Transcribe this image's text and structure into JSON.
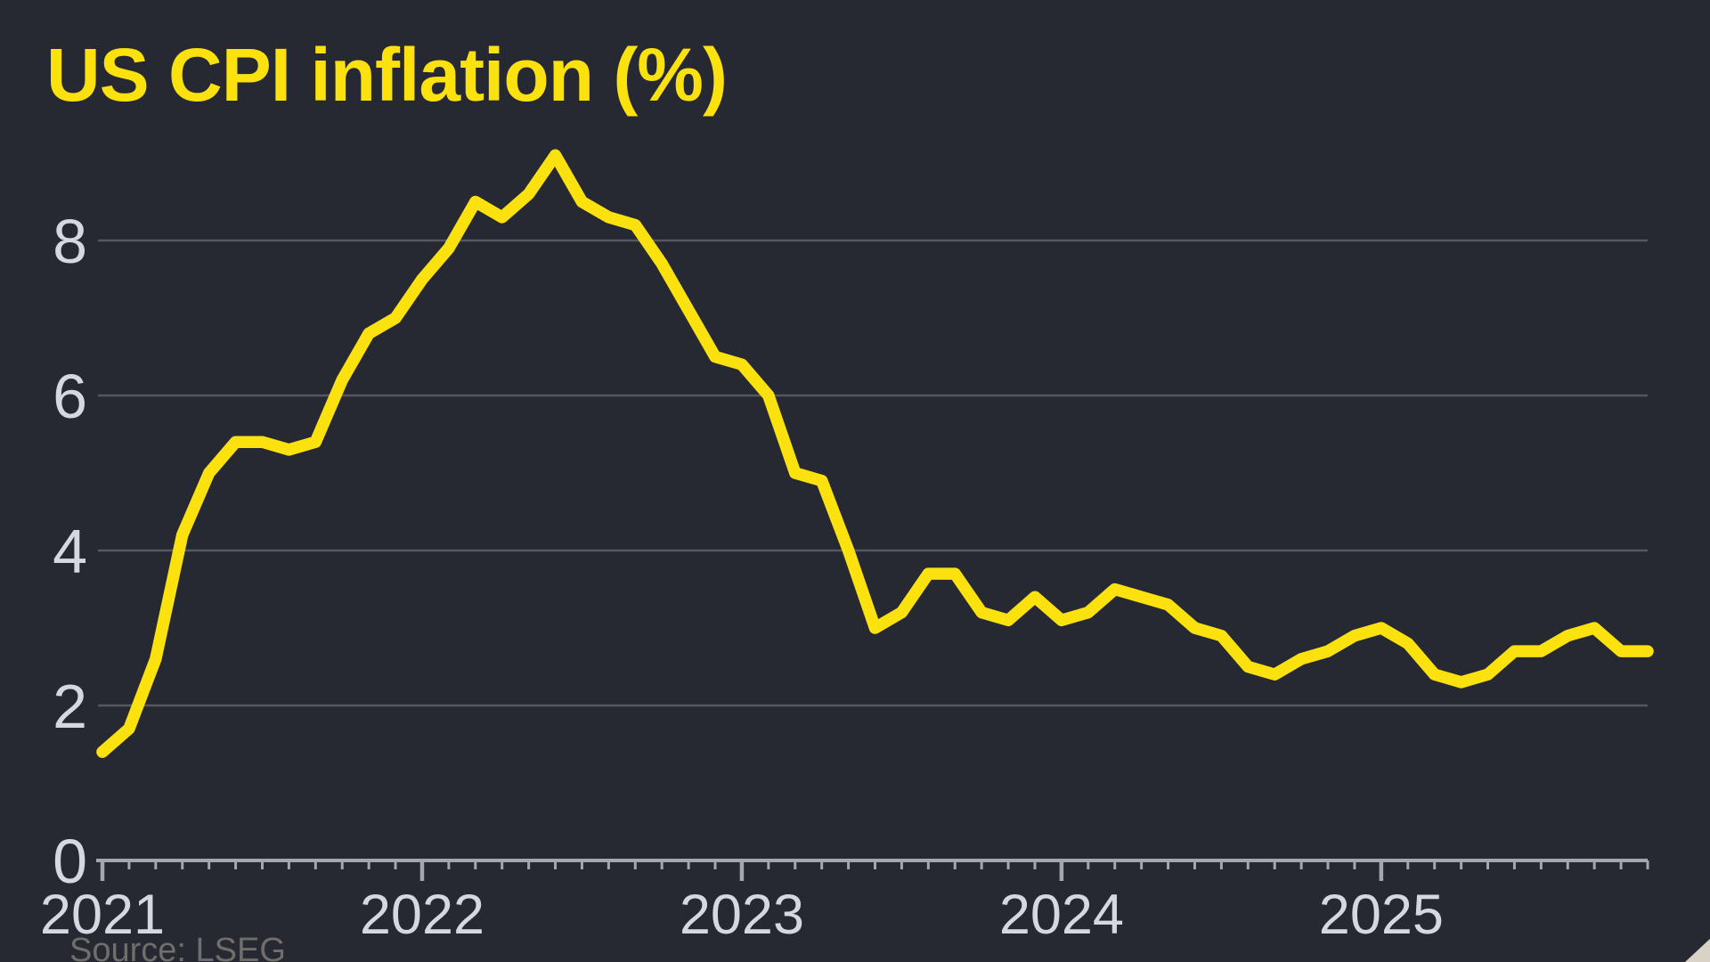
{
  "header": {
    "title": "US CPI inflation (%)"
  },
  "footer": {
    "source": "Source: LSEG"
  },
  "colors": {
    "background": "#262931",
    "line": "#fbe10d",
    "title": "#fbe10d",
    "gridline": "#56585e",
    "axis": "#a6a7ac",
    "tick_label": "#d5d8de",
    "source_text": "#6f6e6c",
    "corner_grip": "#d9d3c7"
  },
  "chart_data": {
    "type": "line",
    "title": "US CPI inflation (%)",
    "xlabel": "",
    "ylabel": "",
    "grid": true,
    "legend": "none",
    "ylim": [
      0,
      9.5
    ],
    "y_ticks": [
      0,
      2,
      4,
      6,
      8
    ],
    "x_tick_labels": [
      "2021",
      "2022",
      "2023",
      "2024",
      "2025"
    ],
    "x": [
      "2021-01",
      "2021-02",
      "2021-03",
      "2021-04",
      "2021-05",
      "2021-06",
      "2021-07",
      "2021-08",
      "2021-09",
      "2021-10",
      "2021-11",
      "2021-12",
      "2022-01",
      "2022-02",
      "2022-03",
      "2022-04",
      "2022-05",
      "2022-06",
      "2022-07",
      "2022-08",
      "2022-09",
      "2022-10",
      "2022-11",
      "2022-12",
      "2023-01",
      "2023-02",
      "2023-03",
      "2023-04",
      "2023-05",
      "2023-06",
      "2023-07",
      "2023-08",
      "2023-09",
      "2023-10",
      "2023-11",
      "2023-12",
      "2024-01",
      "2024-02",
      "2024-03",
      "2024-04",
      "2024-05",
      "2024-06",
      "2024-07",
      "2024-08",
      "2024-09",
      "2024-10",
      "2024-11",
      "2024-12",
      "2025-01",
      "2025-02",
      "2025-03",
      "2025-04",
      "2025-05",
      "2025-06",
      "2025-07",
      "2025-08",
      "2025-09",
      "2025-10",
      "2025-11"
    ],
    "values": [
      1.4,
      1.7,
      2.6,
      4.2,
      5.0,
      5.4,
      5.4,
      5.3,
      5.4,
      6.2,
      6.8,
      7.0,
      7.5,
      7.9,
      8.5,
      8.3,
      8.6,
      9.1,
      8.5,
      8.3,
      8.2,
      7.7,
      7.1,
      6.5,
      6.4,
      6.0,
      5.0,
      4.9,
      4.0,
      3.0,
      3.2,
      3.7,
      3.7,
      3.2,
      3.1,
      3.4,
      3.1,
      3.2,
      3.5,
      3.4,
      3.3,
      3.0,
      2.9,
      2.5,
      2.4,
      2.6,
      2.7,
      2.9,
      3.0,
      2.8,
      2.4,
      2.3,
      2.4,
      2.7,
      2.7,
      2.9,
      3.0,
      2.7,
      2.7
    ]
  }
}
